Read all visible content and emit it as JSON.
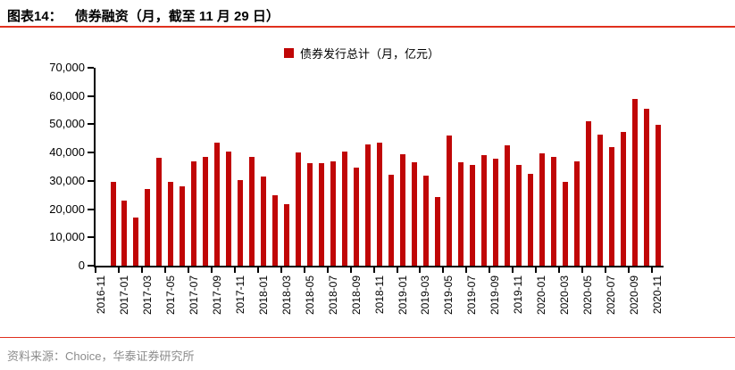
{
  "page": {
    "caption_label": "图表14：",
    "caption_title": "债券融资（月，截至 11 月 29 日）",
    "source_note": "资料来源：Choice，华泰证券研究所"
  },
  "legend": {
    "series_label": "债券发行总计（月，亿元）"
  },
  "colors": {
    "bar": "#c00606",
    "accent_rule": "#e0301e",
    "axis": "#000000",
    "source_text": "#8c8c8c"
  },
  "chart_data": {
    "type": "bar",
    "title": "债券融资（月，截至 11 月 29 日）",
    "series_name": "债券发行总计（月，亿元）",
    "unit": "亿元",
    "categories": [
      "2016-11",
      "2016-12",
      "2017-01",
      "2017-02",
      "2017-03",
      "2017-04",
      "2017-05",
      "2017-06",
      "2017-07",
      "2017-08",
      "2017-09",
      "2017-10",
      "2017-11",
      "2017-12",
      "2018-01",
      "2018-02",
      "2018-03",
      "2018-04",
      "2018-05",
      "2018-06",
      "2018-07",
      "2018-08",
      "2018-09",
      "2018-10",
      "2018-11",
      "2018-12",
      "2019-01",
      "2019-02",
      "2019-03",
      "2019-04",
      "2019-05",
      "2019-06",
      "2019-07",
      "2019-08",
      "2019-09",
      "2019-10",
      "2019-11",
      "2019-12",
      "2020-01",
      "2020-02",
      "2020-03",
      "2020-04",
      "2020-05",
      "2020-06",
      "2020-07",
      "2020-08",
      "2020-09",
      "2020-10",
      "2020-11"
    ],
    "values": [
      null,
      29700,
      23000,
      16900,
      27100,
      38100,
      29800,
      28100,
      36800,
      38400,
      43400,
      40500,
      30200,
      38600,
      31600,
      25000,
      21900,
      40000,
      36400,
      36400,
      37000,
      40500,
      34700,
      43000,
      43500,
      32200,
      39300,
      36700,
      32000,
      24300,
      46000,
      36500,
      35700,
      39100,
      37900,
      42700,
      35500,
      32500,
      39700,
      38600,
      29800,
      36900,
      51000,
      46300,
      42100,
      47200,
      58900,
      55400,
      49700
    ],
    "x_tick_step": 2,
    "ylim": [
      0,
      70000
    ],
    "y_tick_interval": 10000,
    "y_tick_labels": [
      "0",
      "10,000",
      "20,000",
      "30,000",
      "40,000",
      "50,000",
      "60,000",
      "70,000"
    ],
    "grid": false,
    "legend_position": "top-center"
  }
}
